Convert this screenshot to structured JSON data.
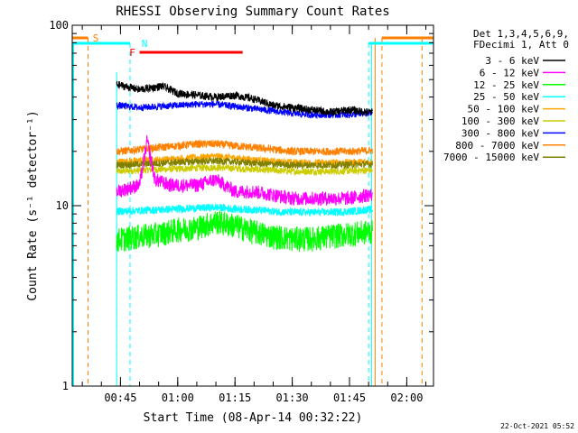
{
  "chart_data": {
    "type": "line",
    "title": "RHESSI Observing Summary Count Rates",
    "xlabel": "Start Time (08-Apr-14 00:32:22)",
    "ylabel": "Count Rate (s⁻¹ detector⁻¹)",
    "y_scale": "log",
    "ylim": [
      1,
      100
    ],
    "xlim": [
      "00:32:22",
      "02:07:00"
    ],
    "x_ticks": [
      "00:45",
      "01:00",
      "01:15",
      "01:30",
      "01:45",
      "02:00"
    ],
    "y_ticks": [
      "1",
      "10",
      "100"
    ],
    "timestamp": "22-Oct-2021 05:52",
    "legend_header": [
      "Det 1,3,4,5,6,9,",
      "FDecimi 1, Att 0"
    ],
    "legend_position": "right",
    "data_start": "00:44:00",
    "data_end": "01:51:00",
    "flag_labels": [
      "S",
      "N",
      "F"
    ],
    "flags": [
      {
        "label": "S",
        "color": "#ff8000",
        "segments": [
          [
            "00:32:22",
            "00:36:30"
          ],
          [
            "01:53:30",
            "02:07:00"
          ]
        ],
        "dash_times": [
          "00:36:30",
          "01:53:30",
          "02:04:00"
        ]
      },
      {
        "label": "N",
        "color": "#00ffff",
        "segments": [
          [
            "00:32:22",
            "00:47:30"
          ],
          [
            "01:50:00",
            "02:07:00"
          ]
        ],
        "dash_times": [
          "00:47:30",
          "01:50:00"
        ]
      },
      {
        "label": "F",
        "color": "#ff0000",
        "segments": [
          [
            "00:50:00",
            "01:17:00"
          ]
        ],
        "dash_times": []
      }
    ],
    "series": [
      {
        "name": "3 - 6 keV",
        "color": "#000000",
        "times": [
          "00:44",
          "00:50",
          "00:56",
          "01:00",
          "01:05",
          "01:10",
          "01:15",
          "01:20",
          "01:25",
          "01:30",
          "01:35",
          "01:40",
          "01:45",
          "01:50"
        ],
        "values": [
          47,
          44,
          46,
          42,
          41,
          40,
          41,
          39,
          36,
          35,
          34,
          33,
          34,
          33
        ]
      },
      {
        "name": "6 - 12 keV",
        "color": "#ff00ff",
        "times": [
          "00:44",
          "00:50",
          "00:52",
          "00:54",
          "00:58",
          "01:05",
          "01:10",
          "01:15",
          "01:20",
          "01:25",
          "01:30",
          "01:35",
          "01:40",
          "01:45",
          "01:50"
        ],
        "values": [
          12,
          13,
          23,
          14,
          13,
          13,
          14,
          12,
          12,
          11.5,
          11,
          11,
          11,
          11,
          11.5
        ]
      },
      {
        "name": "12 - 25 keV",
        "color": "#00ff00",
        "times": [
          "00:44",
          "00:50",
          "00:55",
          "01:00",
          "01:05",
          "01:10",
          "01:15",
          "01:20",
          "01:25",
          "01:30",
          "01:35",
          "01:40",
          "01:45",
          "01:50"
        ],
        "values": [
          6.5,
          6.8,
          7,
          7.4,
          7.6,
          8.2,
          7.8,
          7.2,
          6.8,
          6.6,
          6.6,
          6.8,
          7,
          7.2
        ]
      },
      {
        "name": "25 - 50 keV",
        "color": "#00ffff",
        "times": [
          "00:44",
          "00:50",
          "00:55",
          "01:00",
          "01:05",
          "01:10",
          "01:15",
          "01:20",
          "01:25",
          "01:30",
          "01:35",
          "01:40",
          "01:45",
          "01:50"
        ],
        "values": [
          9.3,
          9.4,
          9.5,
          9.6,
          9.7,
          9.8,
          9.6,
          9.5,
          9.3,
          9.2,
          9.2,
          9.2,
          9.3,
          9.5
        ]
      },
      {
        "name": "50 - 100 keV",
        "color": "#ffa500",
        "times": [
          "00:44",
          "00:50",
          "00:55",
          "01:00",
          "01:05",
          "01:10",
          "01:15",
          "01:20",
          "01:25",
          "01:30",
          "01:35",
          "01:40",
          "01:45",
          "01:50"
        ],
        "values": [
          17.5,
          17.8,
          18,
          18.2,
          18.5,
          18.8,
          18.4,
          18,
          17.6,
          17.4,
          17.3,
          17.3,
          17.4,
          17.5
        ]
      },
      {
        "name": "100 - 300 keV",
        "color": "#cccc00",
        "times": [
          "00:44",
          "00:50",
          "00:55",
          "01:00",
          "01:05",
          "01:10",
          "01:15",
          "01:20",
          "01:25",
          "01:30",
          "01:35",
          "01:40",
          "01:45",
          "01:50"
        ],
        "values": [
          15.5,
          15.7,
          15.9,
          16,
          16.2,
          16.3,
          16.1,
          15.9,
          15.7,
          15.5,
          15.5,
          15.5,
          15.6,
          15.7
        ]
      },
      {
        "name": "300 - 800 keV",
        "color": "#0000ff",
        "times": [
          "00:44",
          "00:50",
          "00:55",
          "01:00",
          "01:05",
          "01:10",
          "01:15",
          "01:20",
          "01:25",
          "01:30",
          "01:35",
          "01:40",
          "01:45",
          "01:50"
        ],
        "values": [
          36,
          35,
          35.5,
          36,
          36.5,
          36.5,
          35.5,
          34.5,
          33.5,
          32.5,
          32,
          32,
          32,
          32.5
        ]
      },
      {
        "name": "800 - 7000 keV",
        "color": "#ff8000",
        "times": [
          "00:44",
          "00:50",
          "00:55",
          "01:00",
          "01:05",
          "01:10",
          "01:15",
          "01:20",
          "01:25",
          "01:30",
          "01:35",
          "01:40",
          "01:45",
          "01:50"
        ],
        "values": [
          20,
          20.5,
          21,
          21.5,
          22,
          22,
          21.5,
          21,
          20.5,
          20,
          20,
          20,
          20,
          20.2
        ]
      },
      {
        "name": "7000 - 15000 keV",
        "color": "#808000",
        "times": [
          "00:44",
          "00:50",
          "00:55",
          "01:00",
          "01:05",
          "01:10",
          "01:15",
          "01:20",
          "01:25",
          "01:30",
          "01:35",
          "01:40",
          "01:45",
          "01:50"
        ],
        "values": [
          16.8,
          17,
          17.2,
          17.4,
          17.6,
          17.7,
          17.5,
          17.2,
          17,
          16.8,
          16.8,
          16.8,
          16.9,
          17
        ]
      }
    ]
  }
}
